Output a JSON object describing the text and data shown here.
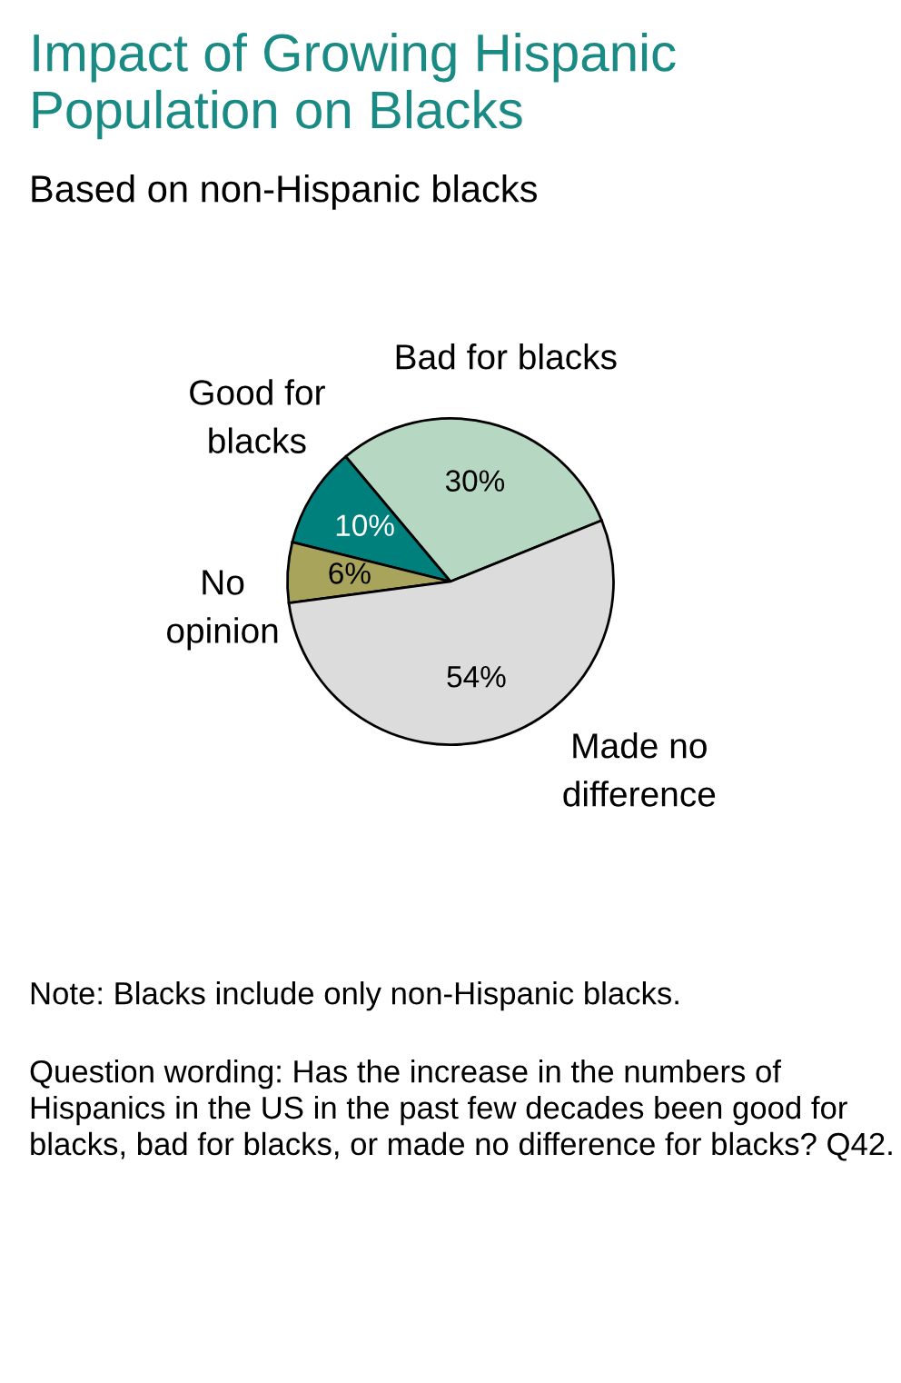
{
  "chart_data": {
    "type": "pie",
    "title": "Impact of Growing Hispanic Population on Blacks",
    "subtitle": "Based on non-Hispanic blacks",
    "categories": [
      "Bad for blacks",
      "Good for blacks",
      "No opinion",
      "Made no difference"
    ],
    "values": [
      30,
      10,
      6,
      54
    ],
    "colors": [
      "#b6d7c2",
      "#00807c",
      "#a8a45c",
      "#dcdcdc"
    ],
    "value_labels": [
      "30%",
      "10%",
      "6%",
      "54%"
    ],
    "annotations": [
      "Note: Blacks include only non-Hispanic blacks.",
      "Question wording: Has the increase in the numbers of Hispanics in the US in the past few decades been good for blacks, bad for blacks, or made no difference for blacks? Q42."
    ]
  }
}
